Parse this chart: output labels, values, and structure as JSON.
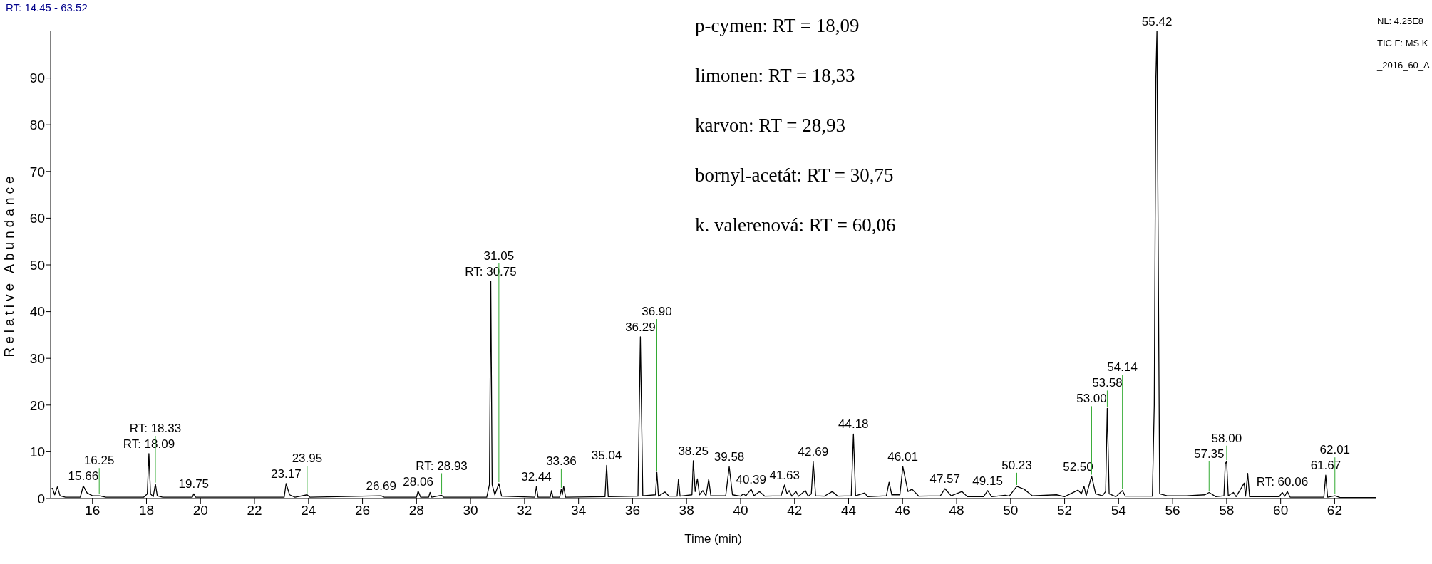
{
  "chart_data": {
    "type": "line",
    "xlabel": "Time (min)",
    "ylabel": "Relative Abundance",
    "xlim": [
      14.45,
      63.52
    ],
    "ylim": [
      0,
      100
    ],
    "xticks": [
      16,
      18,
      20,
      22,
      24,
      26,
      28,
      30,
      32,
      34,
      36,
      38,
      40,
      42,
      44,
      46,
      48,
      50,
      52,
      54,
      56,
      58,
      60,
      62
    ],
    "yticks": [
      0,
      10,
      20,
      30,
      40,
      50,
      60,
      70,
      80,
      90
    ],
    "x": [
      14.45,
      14.52,
      14.6,
      14.7,
      14.8,
      15.0,
      15.55,
      15.66,
      15.8,
      16.0,
      16.25,
      16.5,
      17.9,
      18.03,
      18.09,
      18.15,
      18.25,
      18.33,
      18.4,
      18.6,
      19.7,
      19.75,
      19.82,
      23.1,
      23.17,
      23.3,
      23.5,
      23.95,
      24.05,
      26.69,
      26.8,
      28.0,
      28.06,
      28.15,
      28.45,
      28.5,
      28.56,
      28.93,
      29.0,
      30.6,
      30.7,
      30.75,
      30.8,
      30.9,
      31.05,
      31.15,
      32.38,
      32.44,
      32.5,
      32.95,
      33.0,
      33.05,
      33.3,
      33.36,
      33.4,
      33.45,
      33.52,
      34.98,
      35.04,
      35.1,
      36.2,
      36.29,
      36.38,
      36.85,
      36.9,
      36.96,
      37.2,
      37.35,
      37.65,
      37.7,
      37.76,
      38.2,
      38.25,
      38.32,
      38.4,
      38.48,
      38.6,
      38.72,
      38.82,
      38.9,
      39.45,
      39.58,
      39.7,
      40.0,
      40.1,
      40.2,
      40.39,
      40.5,
      40.7,
      40.9,
      41.5,
      41.63,
      41.72,
      41.8,
      41.9,
      42.05,
      42.15,
      42.4,
      42.5,
      42.62,
      42.69,
      42.78,
      43.1,
      43.4,
      43.6,
      44.1,
      44.18,
      44.26,
      44.6,
      44.7,
      45.4,
      45.5,
      45.6,
      45.9,
      46.01,
      46.2,
      46.35,
      46.6,
      47.4,
      47.57,
      47.8,
      48.2,
      48.4,
      49.0,
      49.15,
      49.3,
      49.8,
      49.95,
      50.23,
      50.5,
      50.8,
      51.7,
      52.0,
      52.5,
      52.62,
      52.72,
      52.8,
      53.0,
      53.15,
      53.4,
      53.52,
      53.58,
      53.65,
      53.9,
      54.14,
      54.25,
      55.25,
      55.32,
      55.38,
      55.42,
      55.46,
      55.52,
      55.8,
      56.5,
      57.2,
      57.35,
      57.6,
      57.9,
      57.95,
      58.0,
      58.06,
      58.25,
      58.35,
      58.65,
      58.7,
      58.78,
      58.85,
      59.95,
      60.06,
      60.15,
      60.25,
      60.35,
      61.6,
      61.67,
      61.74,
      62.01,
      62.2,
      63.52
    ],
    "series": [
      {
        "color": "#000000",
        "values": [
          2.0,
          2.2,
          0.8,
          2.5,
          0.6,
          0.3,
          0.3,
          2.7,
          1.2,
          0.6,
          0.6,
          0.3,
          0.3,
          1.0,
          9.6,
          1.0,
          0.4,
          3.1,
          0.6,
          0.3,
          0.3,
          1.0,
          0.3,
          0.3,
          3.2,
          0.8,
          0.3,
          0.8,
          0.3,
          0.6,
          0.3,
          0.3,
          1.6,
          0.3,
          0.3,
          1.3,
          0.3,
          0.7,
          0.3,
          0.3,
          3.0,
          46.5,
          3.0,
          0.8,
          3.2,
          0.5,
          0.3,
          2.6,
          0.3,
          0.3,
          1.7,
          0.3,
          0.3,
          2.0,
          0.8,
          2.6,
          0.3,
          0.4,
          7.1,
          0.4,
          0.5,
          34.6,
          0.6,
          0.8,
          5.6,
          0.5,
          1.4,
          0.5,
          0.5,
          4.1,
          0.5,
          0.8,
          8.1,
          1.5,
          4.2,
          0.8,
          1.7,
          0.6,
          4.1,
          0.6,
          0.6,
          6.8,
          0.8,
          0.5,
          1.0,
          0.6,
          2.0,
          0.6,
          1.5,
          0.5,
          0.6,
          2.9,
          1.0,
          1.7,
          0.5,
          1.5,
          0.5,
          1.7,
          0.5,
          1.0,
          7.9,
          0.6,
          0.5,
          1.5,
          0.5,
          0.6,
          13.8,
          0.6,
          1.2,
          0.4,
          0.6,
          3.5,
          0.8,
          0.8,
          6.8,
          1.5,
          2.0,
          0.5,
          0.6,
          2.1,
          0.6,
          1.5,
          0.4,
          0.4,
          1.7,
          0.4,
          0.7,
          0.5,
          2.6,
          2.0,
          0.6,
          0.8,
          0.4,
          1.8,
          1.0,
          2.6,
          0.6,
          4.8,
          1.0,
          0.6,
          1.5,
          19.3,
          1.0,
          0.4,
          1.7,
          0.5,
          0.5,
          20,
          90,
          100,
          60,
          1.0,
          0.6,
          0.6,
          0.8,
          1.3,
          0.4,
          0.6,
          7.5,
          7.9,
          0.6,
          1.3,
          0.4,
          3.3,
          0.5,
          5.4,
          0.4,
          0.4,
          1.3,
          0.5,
          1.5,
          0.3,
          0.3,
          5.0,
          0.3,
          0.6,
          0.2,
          0.2
        ]
      }
    ],
    "annotations": [
      "RT: 14.45 - 63.52",
      "p-cymen: RT = 18,09",
      "limonen: RT = 18,33",
      "karvon: RT = 28,93",
      "bornyl-acetát: RT = 30,75",
      "k. valerenová: RT = 60,06",
      "NL: 4.25E8",
      "TIC F: MS K_2016_60_A",
      {
        "text": "15.66",
        "x": 15.66,
        "y": 2.7
      },
      {
        "text": "16.25",
        "x": 16.25,
        "y": 0.6
      },
      {
        "text": "RT: 18.09",
        "x": 18.09,
        "y": 9.6
      },
      {
        "text": "RT: 18.33",
        "x": 18.33,
        "y": 3.1
      },
      {
        "text": "19.75",
        "x": 19.75,
        "y": 1.0
      },
      {
        "text": "23.17",
        "x": 23.17,
        "y": 3.2
      },
      {
        "text": "23.95",
        "x": 23.95,
        "y": 0.8
      },
      {
        "text": "26.69",
        "x": 26.69,
        "y": 0.6
      },
      {
        "text": "28.06",
        "x": 28.06,
        "y": 1.6
      },
      {
        "text": "RT: 28.93",
        "x": 28.93,
        "y": 0.7
      },
      {
        "text": "RT: 30.75",
        "x": 30.75,
        "y": 46.5
      },
      {
        "text": "31.05",
        "x": 31.05,
        "y": 3.2
      },
      {
        "text": "32.44",
        "x": 32.44,
        "y": 2.6
      },
      {
        "text": "33.36",
        "x": 33.36,
        "y": 2.0
      },
      {
        "text": "35.04",
        "x": 35.04,
        "y": 7.1
      },
      {
        "text": "36.29",
        "x": 36.29,
        "y": 34.6
      },
      {
        "text": "36.90",
        "x": 36.9,
        "y": 5.6
      },
      {
        "text": "38.25",
        "x": 38.25,
        "y": 8.1
      },
      {
        "text": "39.58",
        "x": 39.58,
        "y": 6.8
      },
      {
        "text": "40.39",
        "x": 40.39,
        "y": 2.0
      },
      {
        "text": "41.63",
        "x": 41.63,
        "y": 2.9
      },
      {
        "text": "42.69",
        "x": 42.69,
        "y": 7.9
      },
      {
        "text": "44.18",
        "x": 44.18,
        "y": 13.8
      },
      {
        "text": "46.01",
        "x": 46.01,
        "y": 6.8
      },
      {
        "text": "47.57",
        "x": 47.57,
        "y": 2.1
      },
      {
        "text": "49.15",
        "x": 49.15,
        "y": 1.7
      },
      {
        "text": "50.23",
        "x": 50.23,
        "y": 2.6
      },
      {
        "text": "52.50",
        "x": 52.5,
        "y": 1.8
      },
      {
        "text": "53.00",
        "x": 53.0,
        "y": 4.8
      },
      {
        "text": "53.58",
        "x": 53.58,
        "y": 19.3
      },
      {
        "text": "54.14",
        "x": 54.14,
        "y": 1.7
      },
      {
        "text": "55.42",
        "x": 55.42,
        "y": 100
      },
      {
        "text": "57.35",
        "x": 57.35,
        "y": 1.3
      },
      {
        "text": "58.00",
        "x": 58.0,
        "y": 7.9
      },
      {
        "text": "RT: 60.06",
        "x": 60.06,
        "y": 1.3
      },
      {
        "text": "61.67",
        "x": 61.67,
        "y": 5.0
      },
      {
        "text": "62.01",
        "x": 62.01,
        "y": 0.6
      }
    ]
  }
}
